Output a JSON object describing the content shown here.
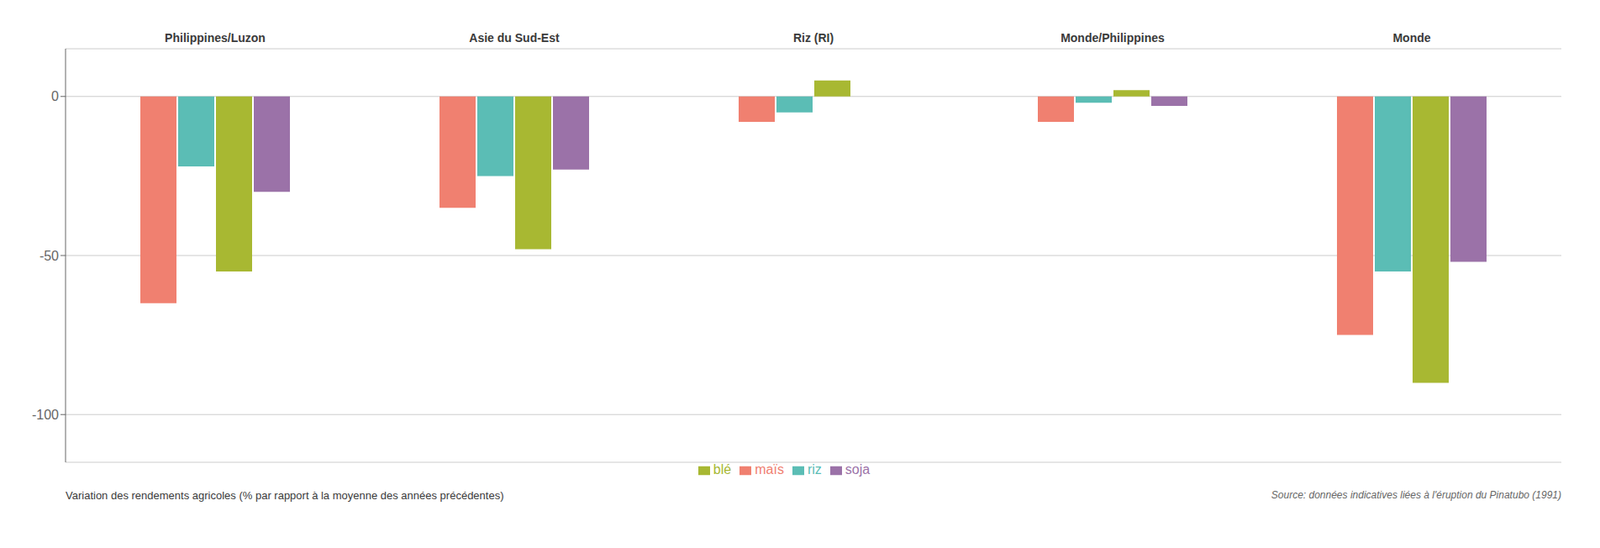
{
  "chart_data": {
    "type": "bar",
    "xlabel": "Variation des rendements agricoles (% par rapport à la moyenne des années précédentes)",
    "annotations": [
      "Source: données indicatives liées à l'éruption du Pinatubo (1991)"
    ],
    "categories": [
      "Philippines/Luzon",
      "Asie du Sud-Est",
      "Riz (RI)",
      "Monde/Philippines",
      "Monde"
    ],
    "series": [
      {
        "name": "maïs",
        "color": "#F08070",
        "values": [
          -65,
          -35,
          -8,
          -8,
          -75
        ]
      },
      {
        "name": "riz",
        "color": "#5BBDB5",
        "values": [
          -22,
          -25,
          -5,
          -2,
          -55
        ]
      },
      {
        "name": "blé",
        "color": "#A8B832",
        "values": [
          -55,
          -48,
          5,
          2,
          -90
        ]
      },
      {
        "name": "soja",
        "color": "#9B72A8",
        "values": [
          -30,
          -23,
          0,
          -3,
          -52
        ]
      }
    ],
    "ylim": [
      -115,
      15
    ],
    "yticks": [
      0,
      -50,
      -100
    ],
    "grid": true,
    "legend": "bottom"
  }
}
